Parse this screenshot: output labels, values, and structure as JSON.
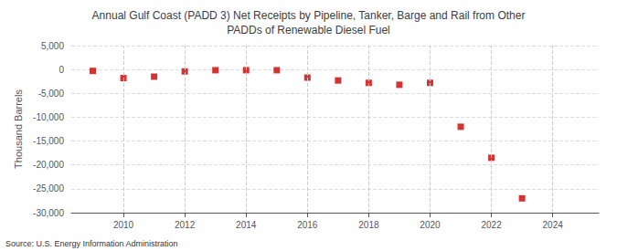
{
  "chart_data": {
    "type": "scatter",
    "title": "Annual Gulf Coast (PADD 3) Net Receipts by Pipeline, Tanker, Barge and Rail from Other\nPADDs of Renewable Diesel Fuel",
    "ylabel": "Thousand Barrels",
    "annotations": [
      "Source: U.S. Energy Information Administration"
    ],
    "x": [
      2009,
      2010,
      2011,
      2012,
      2013,
      2014,
      2015,
      2016,
      2017,
      2018,
      2019,
      2020,
      2021,
      2022,
      2023,
      2024
    ],
    "values": [
      -300,
      -1800,
      -1500,
      -400,
      -150,
      -150,
      -150,
      -1700,
      -2300,
      -2800,
      -3200,
      -2800,
      -12000,
      -18500,
      -27000,
      null
    ],
    "color": "#cc0000",
    "marker": "square",
    "xlim": [
      2008.3,
      2025.5
    ],
    "xticks": [
      2010,
      2012,
      2014,
      2016,
      2018,
      2020,
      2022,
      2024
    ],
    "ylim": [
      -30000,
      5000
    ],
    "yticks": [
      {
        "value": 5000,
        "label": "5,000"
      },
      0,
      {
        "value": -5000,
        "label": "-5,000"
      },
      {
        "value": -10000,
        "label": "-10,000"
      },
      {
        "value": -15000,
        "label": "-15,000"
      },
      {
        "value": -20000,
        "label": "-20,000"
      },
      {
        "value": -25000,
        "label": "-25,000"
      },
      {
        "value": -30000,
        "label": "-30,000"
      }
    ],
    "grid": true
  }
}
